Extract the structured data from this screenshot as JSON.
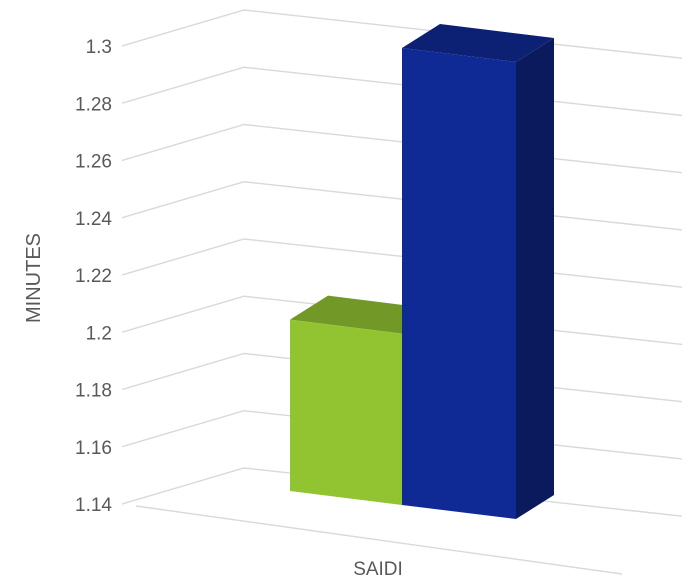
{
  "chart_data": {
    "type": "bar",
    "style": "3d-clustered-column",
    "categories": [
      "SAIDI"
    ],
    "series": [
      {
        "values": [
          1.2
        ],
        "color": "#92c432"
      },
      {
        "values": [
          1.3
        ],
        "color": "#102a95"
      }
    ],
    "ylabel": "MINUTES",
    "ylim": [
      1.14,
      1.3
    ],
    "yticks": [
      "1.14",
      "1.16",
      "1.18",
      "1.2",
      "1.22",
      "1.24",
      "1.26",
      "1.28",
      "1.3"
    ],
    "grid": true,
    "legend": "none"
  }
}
